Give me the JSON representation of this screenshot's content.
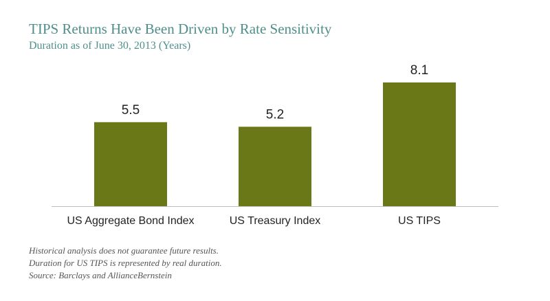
{
  "title": "TIPS Returns Have Been Driven by Rate Sensitivity",
  "subtitle": "Duration as of June 30, 2013 (Years)",
  "colors": {
    "title": "#4e8f8b",
    "bar": "#6a7818",
    "axis": "#bdbdbd",
    "text": "#222222",
    "notes": "#555555"
  },
  "chart_data": {
    "type": "bar",
    "categories": [
      "US Aggregate Bond Index",
      "US Treasury Index",
      "US TIPS"
    ],
    "values": [
      5.5,
      5.2,
      8.1
    ],
    "value_labels": [
      "5.5",
      "5.2",
      "8.1"
    ],
    "title": "TIPS Returns Have Been Driven by Rate Sensitivity",
    "subtitle": "Duration as of June 30, 2013 (Years)",
    "xlabel": "",
    "ylabel": "",
    "ylim": [
      0,
      8.1
    ],
    "grid": false,
    "legend": "none"
  },
  "notes": [
    "Historical analysis does not guarantee future results.",
    "Duration for US TIPS is represented by real duration.",
    "Source: Barclays and AllianceBernstein"
  ]
}
